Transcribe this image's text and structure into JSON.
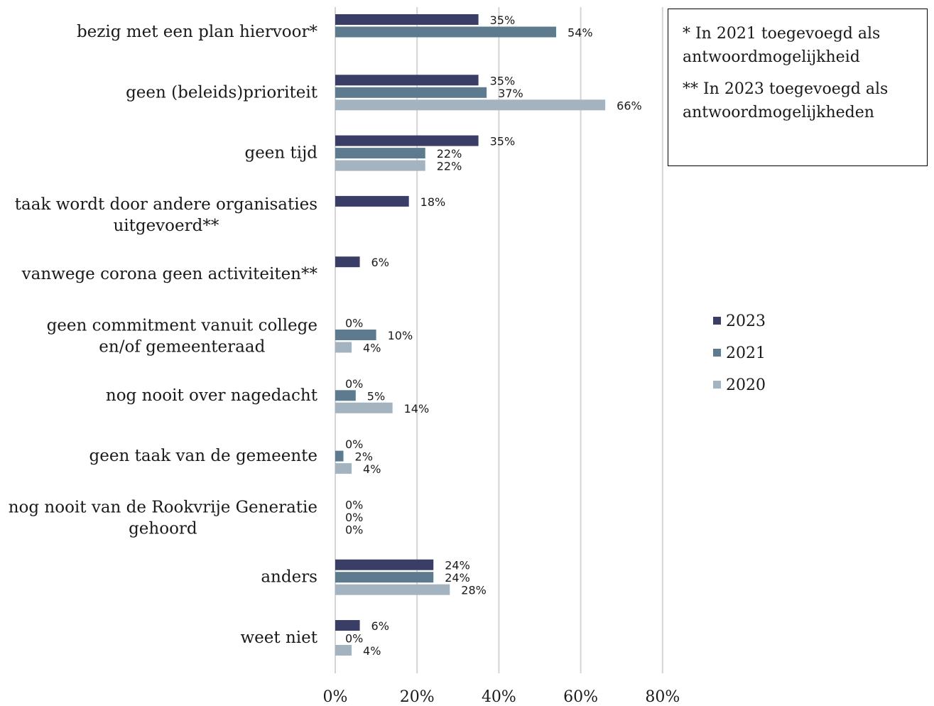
{
  "chart_data": {
    "type": "bar",
    "orientation": "horizontal",
    "categories": [
      [
        "bezig met een plan hiervoor*"
      ],
      [
        "geen (beleids)prioriteit"
      ],
      [
        "geen tijd"
      ],
      [
        "taak wordt door andere organisaties",
        "uitgevoerd**"
      ],
      [
        "vanwege corona geen activiteiten**"
      ],
      [
        "geen commitment vanuit college",
        "en/of gemeenteraad"
      ],
      [
        "nog nooit over nagedacht"
      ],
      [
        "geen taak van de gemeente"
      ],
      [
        "nog nooit van de Rookvrije Generatie",
        "gehoord"
      ],
      [
        "anders"
      ],
      [
        "weet niet"
      ]
    ],
    "series": [
      {
        "name": "2023",
        "color": "#3a3d66",
        "values": [
          35,
          35,
          35,
          18,
          6,
          0,
          0,
          0,
          0,
          24,
          6
        ]
      },
      {
        "name": "2021",
        "color": "#5e7a8f",
        "values": [
          54,
          37,
          22,
          null,
          null,
          10,
          5,
          2,
          0,
          24,
          0
        ]
      },
      {
        "name": "2020",
        "color": "#a3b3c0",
        "values": [
          null,
          66,
          22,
          null,
          null,
          4,
          14,
          4,
          0,
          28,
          4
        ]
      }
    ],
    "xlim": [
      0,
      80
    ],
    "xticks": [
      "0%",
      "20%",
      "40%",
      "60%",
      "80%"
    ],
    "grid": true,
    "legend_position": "right"
  },
  "notes": [
    "* In 2021 toegevoegd als antwoordmogelijkheid",
    "** In 2023 toegevoegd als antwoordmogelijkheden"
  ]
}
